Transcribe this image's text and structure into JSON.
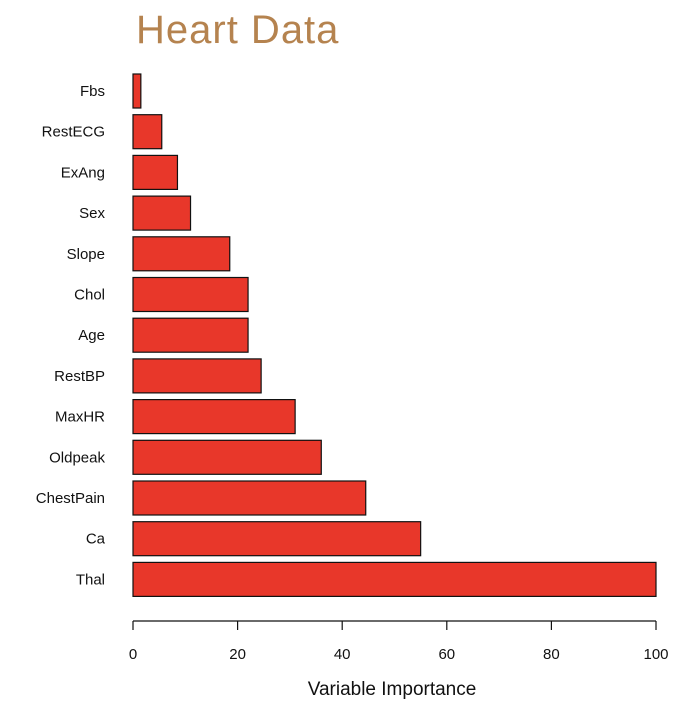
{
  "chart_data": {
    "type": "bar",
    "orientation": "horizontal",
    "title": "Heart Data",
    "xlabel": "Variable Importance",
    "ylabel": "",
    "xlim": [
      0,
      100
    ],
    "xticks": [
      0,
      20,
      40,
      60,
      80,
      100
    ],
    "grid": false,
    "bar_color": "#e8372a",
    "bar_outline": "#111111",
    "title_color": "#b5834f",
    "categories": [
      "Fbs",
      "RestECG",
      "ExAng",
      "Sex",
      "Slope",
      "Chol",
      "Age",
      "RestBP",
      "MaxHR",
      "Oldpeak",
      "ChestPain",
      "Ca",
      "Thal"
    ],
    "values": [
      1.5,
      5.5,
      8.5,
      11,
      18.5,
      22,
      22,
      24.5,
      31,
      36,
      44.5,
      55,
      100
    ]
  }
}
